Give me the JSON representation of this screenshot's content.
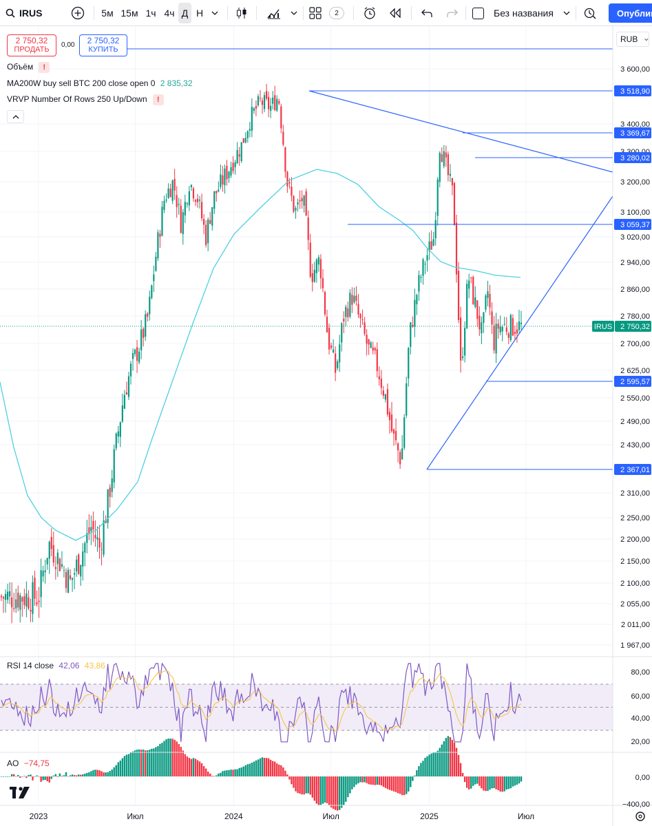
{
  "toolbar": {
    "symbol": "IRUS",
    "search_icon": "search-icon",
    "add_icon": "plus-circle-icon",
    "intervals": [
      "5м",
      "15м",
      "1ч",
      "4ч",
      "Д",
      "Н"
    ],
    "active_interval": "Д",
    "interval_dropdown_icon": "chevron-down-icon",
    "chart_type_icon": "candlestick-icon",
    "indicators_icon": "indicators-icon",
    "layout_icon": "grid-layout-icon",
    "layout_count": "2",
    "alert_icon": "alarm-clock-icon",
    "replay_icon": "rewind-icon",
    "undo_icon": "undo-icon",
    "redo_icon": "redo-icon",
    "layout_name": "Без названия",
    "snapshot_icon": "snapshot-icon",
    "publish_label": "Опублин"
  },
  "trade": {
    "sell_price": "2 750,32",
    "sell_label": "ПРОДАТЬ",
    "spread": "0,00",
    "buy_price": "2 750,32",
    "buy_label": "КУПИТЬ"
  },
  "legend": {
    "volume": "Объём",
    "ma_label": "MA200W buy sell BTC 200 close open 0",
    "ma_value": "2 835,32",
    "vrvp_label": "VRVP Number Of Rows 250 Up/Down",
    "collapse_icon": "chevron-up-icon"
  },
  "price_scale": {
    "currency": "RUB",
    "ticks": [
      "3 600,00",
      "3 400,00",
      "3 300,00",
      "3 200,00",
      "3 100,00",
      "3 020,00",
      "2 940,00",
      "2 860,00",
      "2 780,00",
      "2 700,00",
      "2 625,00",
      "2 550,00",
      "2 490,00",
      "2 430,00",
      "2 310,00",
      "2 250,00",
      "2 200,00",
      "2 150,00",
      "2 100,00",
      "2 055,00",
      "2 011,00",
      "1 967,00"
    ],
    "last_symbol": "IRUS",
    "last_price": "2 750,32",
    "line_labels": [
      "3 518,90",
      "3 369,67",
      "3 280,02",
      "3 059,37",
      "2 595,57",
      "2 367,01"
    ]
  },
  "rsi": {
    "label": "RSI 14 close",
    "value1": "42,06",
    "value2": "43,86",
    "ticks": [
      "80,00",
      "60,00",
      "40,00",
      "20,00"
    ]
  },
  "ao": {
    "label": "AO",
    "value": "−74,75",
    "ticks": [
      "0,00",
      "−400,00"
    ]
  },
  "time_axis": {
    "labels": [
      "2023",
      "Июл",
      "2024",
      "Июл",
      "2025",
      "Июл"
    ]
  },
  "colors": {
    "up": "#089981",
    "down": "#f23645",
    "ma": "#4dd0e1",
    "lines": "#2962ff",
    "rsi": "#7e57c2",
    "rsi_ma": "#f7c548",
    "rsi_band": "#ede7f6"
  },
  "chart_data": {
    "type": "candlestick",
    "symbol": "IRUS",
    "interval": "Д",
    "currency": "RUB",
    "last_price": 2750.32,
    "ma200w_value": 2835.32,
    "horizontal_levels": [
      3518.9,
      3369.67,
      3280.02,
      3059.37,
      2595.57,
      2367.01
    ],
    "close_path": [
      [
        "2023-01-01",
        2070
      ],
      [
        "2023-01-20",
        2190
      ],
      [
        "2023-02-10",
        2150
      ],
      [
        "2023-03-01",
        2100
      ],
      [
        "2023-03-20",
        2160
      ],
      [
        "2023-04-10",
        2230
      ],
      [
        "2023-04-25",
        2180
      ],
      [
        "2023-05-10",
        2280
      ],
      [
        "2023-05-25",
        2420
      ],
      [
        "2023-06-10",
        2560
      ],
      [
        "2023-06-25",
        2640
      ],
      [
        "2023-07-10",
        2700
      ],
      [
        "2023-07-25",
        2780
      ],
      [
        "2023-08-10",
        2980
      ],
      [
        "2023-08-25",
        3150
      ],
      [
        "2023-09-10",
        3200
      ],
      [
        "2023-09-25",
        3060
      ],
      [
        "2023-10-10",
        3200
      ],
      [
        "2023-10-25",
        3150
      ],
      [
        "2023-11-10",
        3020
      ],
      [
        "2023-11-25",
        3150
      ],
      [
        "2023-12-10",
        3200
      ],
      [
        "2023-12-25",
        3250
      ],
      [
        "2024-01-15",
        3320
      ],
      [
        "2024-02-01",
        3420
      ],
      [
        "2024-02-20",
        3480
      ],
      [
        "2024-03-10",
        3460
      ],
      [
        "2024-03-25",
        3500
      ],
      [
        "2024-04-10",
        3200
      ],
      [
        "2024-04-25",
        3100
      ],
      [
        "2024-05-10",
        3150
      ],
      [
        "2024-05-25",
        2900
      ],
      [
        "2024-06-10",
        2950
      ],
      [
        "2024-06-25",
        2720
      ],
      [
        "2024-07-10",
        2620
      ],
      [
        "2024-07-25",
        2780
      ],
      [
        "2024-08-10",
        2840
      ],
      [
        "2024-08-25",
        2760
      ],
      [
        "2024-09-10",
        2680
      ],
      [
        "2024-09-25",
        2640
      ],
      [
        "2024-10-10",
        2560
      ],
      [
        "2024-10-25",
        2450
      ],
      [
        "2024-11-10",
        2390
      ],
      [
        "2024-11-25",
        2720
      ],
      [
        "2024-12-10",
        2860
      ],
      [
        "2024-12-25",
        2950
      ],
      [
        "2025-01-10",
        3020
      ],
      [
        "2025-01-20",
        3330
      ],
      [
        "2025-02-01",
        3250
      ],
      [
        "2025-02-15",
        3150
      ],
      [
        "2025-03-01",
        2620
      ],
      [
        "2025-03-15",
        2900
      ],
      [
        "2025-03-30",
        2800
      ],
      [
        "2025-04-10",
        2720
      ],
      [
        "2025-04-20",
        2860
      ],
      [
        "2025-05-01",
        2700
      ],
      [
        "2025-05-10",
        2750
      ]
    ],
    "rsi": {
      "value": 42.06,
      "ma": 43.86,
      "levels": [
        70,
        50,
        30
      ]
    },
    "ao": {
      "value": -74.75
    }
  }
}
